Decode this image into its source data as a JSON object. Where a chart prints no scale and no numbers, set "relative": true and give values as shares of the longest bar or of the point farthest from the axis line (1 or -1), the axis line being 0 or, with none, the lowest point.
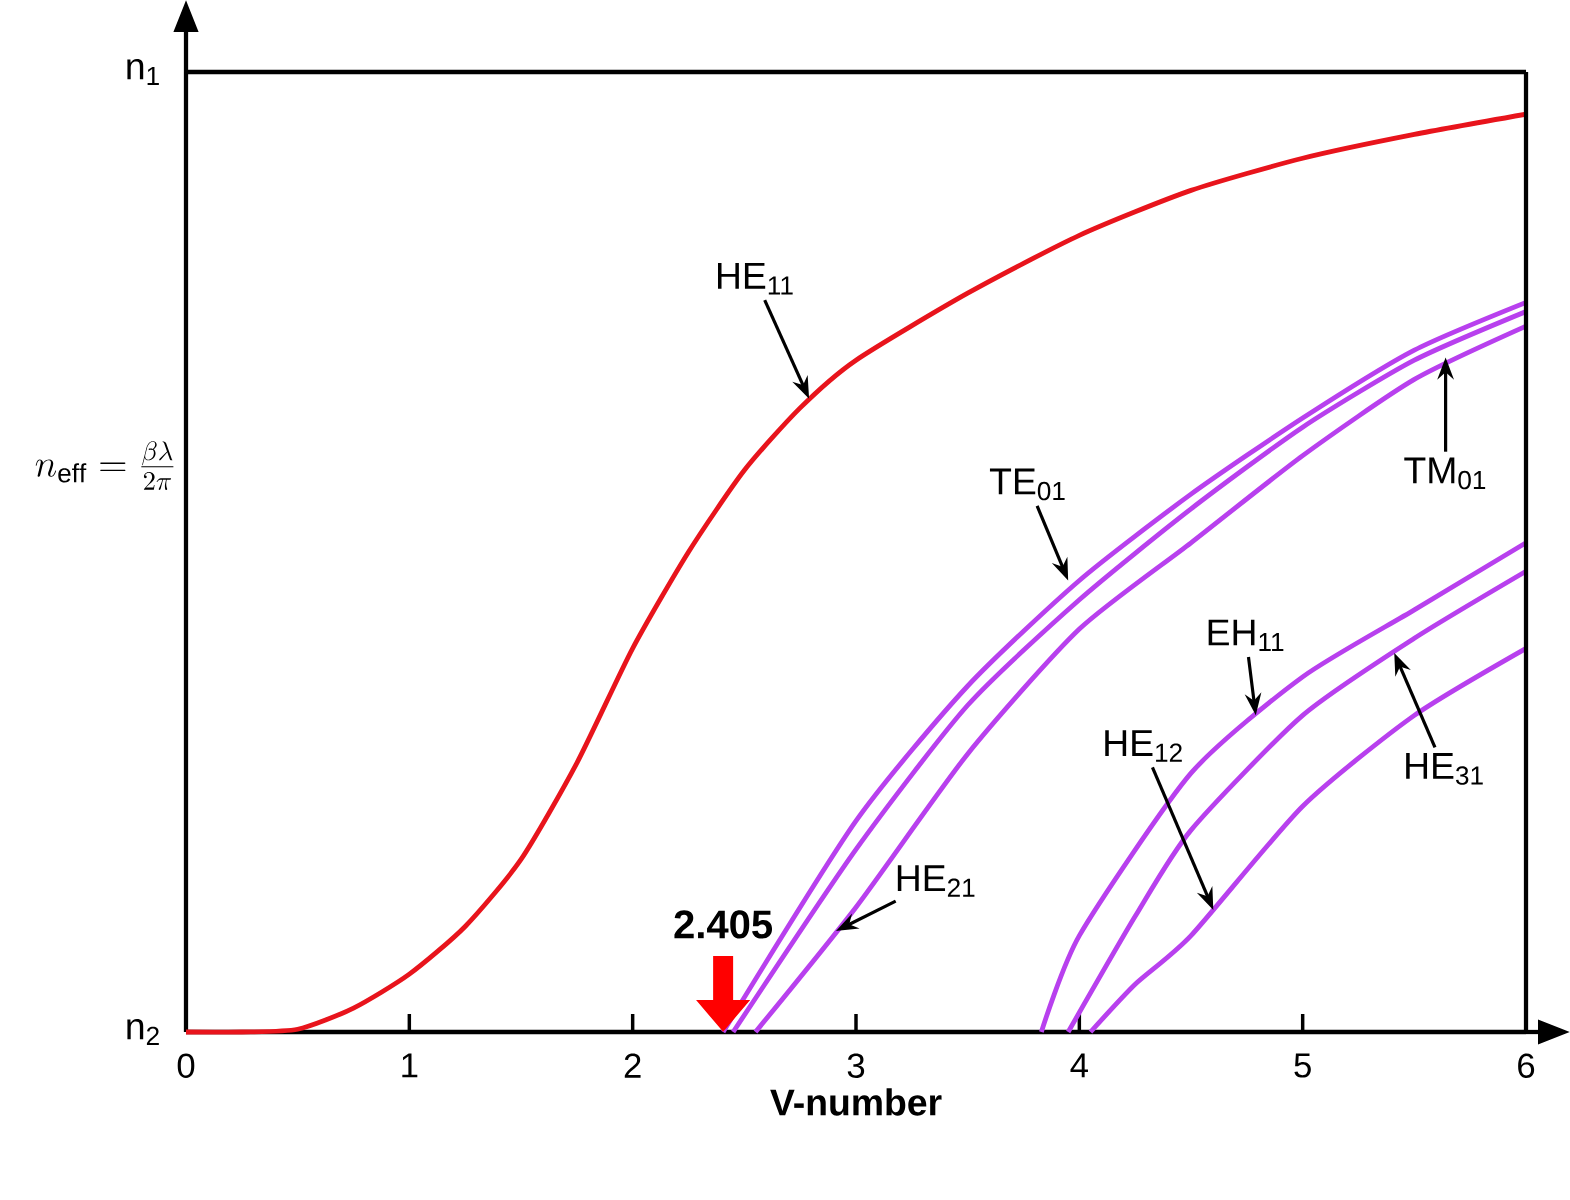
{
  "chart_data": {
    "type": "line",
    "relative": true,
    "xlabel": "V-number",
    "ylabel": "n_{\\mathrm{eff}}=\\frac{\\beta\\lambda}{2\\pi}",
    "xlim": [
      0,
      6
    ],
    "xticks": [
      0,
      1,
      2,
      3,
      4,
      5,
      6
    ],
    "ref_lines": [
      {
        "axis": "y",
        "value": 1.046,
        "label": "n$_{1}$"
      }
    ],
    "grid": false,
    "legend": false,
    "marker": "none",
    "line_style": "solid",
    "series": [
      {
        "color": "#e8141c",
        "x": [
          0,
          0.25,
          0.5,
          0.75,
          1,
          1.25,
          1.5,
          1.75,
          2,
          2.25,
          2.5,
          2.75,
          3,
          3.5,
          4,
          4.5,
          5,
          5.5,
          6
        ],
        "values": [
          0,
          0,
          0.003,
          0.026,
          0.063,
          0.115,
          0.188,
          0.293,
          0.418,
          0.523,
          0.612,
          0.68,
          0.732,
          0.805,
          0.868,
          0.917,
          0.952,
          0.978,
          1
        ]
      },
      {
        "color": "#b840ee",
        "x": [
          2.405,
          3,
          3.5,
          4,
          4.5,
          5,
          5.5,
          6
        ],
        "values": [
          0,
          0.23,
          0.377,
          0.492,
          0.586,
          0.669,
          0.743,
          0.795
        ]
      },
      {
        "color": "#b840ee",
        "x": [
          2.45,
          3,
          3.5,
          4,
          4.5,
          5,
          5.5,
          6
        ],
        "values": [
          0,
          0.199,
          0.356,
          0.471,
          0.57,
          0.659,
          0.732,
          0.785
        ]
      },
      {
        "color": "#b840ee",
        "x": [
          2.55,
          3,
          3.5,
          4,
          4.5,
          5,
          5.5,
          6
        ],
        "values": [
          0,
          0.136,
          0.303,
          0.439,
          0.533,
          0.628,
          0.711,
          0.769
        ]
      },
      {
        "color": "#b840ee",
        "x": [
          3.83,
          4,
          4.5,
          5,
          5.5,
          6
        ],
        "values": [
          0,
          0.105,
          0.282,
          0.387,
          0.46,
          0.533
        ]
      },
      {
        "color": "#b840ee",
        "x": [
          3.95,
          4.25,
          4.5,
          5,
          5.5,
          6
        ],
        "values": [
          0,
          0.126,
          0.22,
          0.345,
          0.429,
          0.502
        ]
      },
      {
        "color": "#b840ee",
        "x": [
          4.05,
          4.25,
          4.5,
          5,
          5.5,
          6
        ],
        "values": [
          0,
          0.052,
          0.105,
          0.246,
          0.345,
          0.418
        ]
      }
    ],
    "annotations": [
      {
        "text": "HE$_{11}$",
        "x": 2.79,
        "y": 0.69
      },
      {
        "text": "TE$_{01}$",
        "x": 3.95,
        "y": 0.492
      },
      {
        "text": "TM$_{01}$",
        "x": 5.64,
        "y": 0.735
      },
      {
        "text": "HE$_{21}$",
        "x": 2.91,
        "y": 0.11
      },
      {
        "text": "EH$_{11}$",
        "x": 4.79,
        "y": 0.345
      },
      {
        "text": "HE$_{12}$",
        "x": 4.6,
        "y": 0.133
      },
      {
        "text": "HE$_{31}$",
        "x": 5.41,
        "y": 0.413
      },
      {
        "text": "2.405",
        "x": 2.405,
        "y": 0
      },
      "n$_{2}$"
    ]
  }
}
